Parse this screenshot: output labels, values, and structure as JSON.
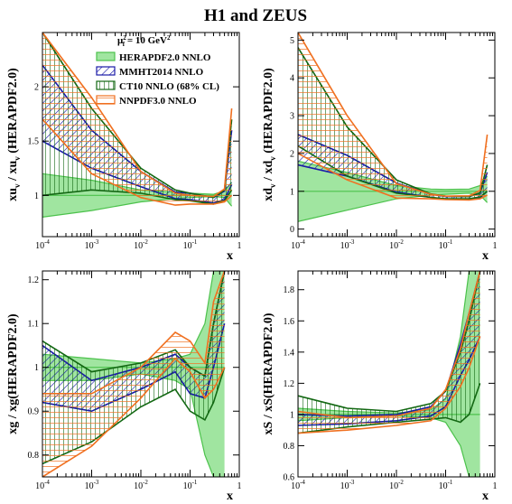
{
  "title": "H1 and ZEUS",
  "legend": {
    "scale": "μ",
    "scale_sub": "f",
    "scale_sup": "2",
    "scale_rest": " = 10 GeV",
    "scale_unit_sup": "2",
    "entries": [
      {
        "label": "HERAPDF2.0 NNLO",
        "key": "hera"
      },
      {
        "label": "MMHT2014 NNLO",
        "key": "mmht"
      },
      {
        "label": "CT10 NNLO (68% CL)",
        "key": "ct10"
      },
      {
        "label": "NNPDF3.0 NNLO",
        "key": "nnpdf"
      }
    ]
  },
  "colors": {
    "hera_fill": "#8fe08f",
    "hera_line": "#4cc24c",
    "mmht": "#1a1aa8",
    "ct10": "#136813",
    "nnpdf": "#f07020",
    "axis": "#000000"
  },
  "chart_data": [
    {
      "type": "line",
      "ylabel": "xu  / xu  (HERAPDF2.0)",
      "ylabel_main": "xu",
      "ylabel_sub": "v",
      "ylabel_mid": " / xu",
      "ylabel_sub2": "v",
      "ylabel_end": " (HERAPDF2.0)",
      "xlabel": "x",
      "xscale": "log",
      "xlim": [
        0.0001,
        1
      ],
      "ylim": [
        0.62,
        2.5
      ],
      "yticks": [
        "1",
        "1.5",
        "2"
      ],
      "yticks_values": [
        1,
        1.5,
        2
      ],
      "xticks": [
        {
          "base": "10",
          "exp": "-4",
          "v": 0.0001
        },
        {
          "base": "10",
          "exp": "-3",
          "v": 0.001
        },
        {
          "base": "10",
          "exp": "-2",
          "v": 0.01
        },
        {
          "base": "10",
          "exp": "-1",
          "v": 0.1
        },
        {
          "base": "1",
          "exp": "",
          "v": 1
        }
      ],
      "series": [
        {
          "key": "hera",
          "x": [
            0.0001,
            0.001,
            0.01,
            0.05,
            0.1,
            0.3,
            0.5,
            0.7
          ],
          "central": [
            1,
            1,
            1,
            1,
            1,
            1,
            1,
            1
          ],
          "lo": [
            0.8,
            0.86,
            0.94,
            0.97,
            0.98,
            0.99,
            0.98,
            0.9
          ],
          "hi": [
            1.2,
            1.14,
            1.05,
            1.03,
            1.02,
            1.01,
            1.04,
            1.12
          ]
        },
        {
          "key": "mmht",
          "x": [
            0.0001,
            0.001,
            0.01,
            0.05,
            0.1,
            0.3,
            0.5,
            0.7
          ],
          "central": [
            1.85,
            1.4,
            1.15,
            1.0,
            0.99,
            0.95,
            1.0,
            1.3
          ],
          "lo": [
            1.5,
            1.25,
            1.08,
            0.97,
            0.96,
            0.93,
            0.96,
            1.1
          ],
          "hi": [
            2.2,
            1.6,
            1.22,
            1.03,
            1.02,
            0.98,
            1.04,
            1.6
          ]
        },
        {
          "key": "ct10",
          "x": [
            0.0001,
            0.001,
            0.01,
            0.05,
            0.1,
            0.3,
            0.5,
            0.7
          ],
          "central": [
            1.5,
            1.3,
            1.12,
            1.0,
            0.98,
            0.95,
            1.0,
            1.3
          ],
          "lo": [
            1.0,
            1.05,
            1.02,
            0.96,
            0.95,
            0.92,
            0.95,
            1.05
          ],
          "hi": [
            2.5,
            1.8,
            1.25,
            1.05,
            1.02,
            0.98,
            1.05,
            1.7
          ]
        },
        {
          "key": "nnpdf",
          "x": [
            0.0001,
            0.001,
            0.01,
            0.05,
            0.1,
            0.3,
            0.5,
            0.7
          ],
          "central": [
            2.1,
            1.5,
            1.1,
            0.96,
            0.96,
            0.95,
            1.0,
            1.4
          ],
          "lo": [
            1.7,
            1.2,
            0.98,
            0.91,
            0.92,
            0.92,
            0.94,
            1.0
          ],
          "hi": [
            2.5,
            1.9,
            1.22,
            1.02,
            1.0,
            0.99,
            1.06,
            1.8
          ]
        }
      ]
    },
    {
      "type": "line",
      "ylabel": "xd  / xd  (HERAPDF2.0)",
      "ylabel_main": "xd",
      "ylabel_sub": "v",
      "ylabel_mid": " / xd",
      "ylabel_sub2": "v",
      "ylabel_end": " (HERAPDF2.0)",
      "xlabel": "x",
      "xscale": "log",
      "xlim": [
        0.0001,
        1
      ],
      "ylim": [
        -0.2,
        5.2
      ],
      "yticks": [
        "0",
        "1",
        "2",
        "3",
        "4",
        "5"
      ],
      "yticks_values": [
        0,
        1,
        2,
        3,
        4,
        5
      ],
      "xticks": [
        {
          "base": "10",
          "exp": "-4",
          "v": 0.0001
        },
        {
          "base": "10",
          "exp": "-3",
          "v": 0.001
        },
        {
          "base": "10",
          "exp": "-2",
          "v": 0.01
        },
        {
          "base": "10",
          "exp": "-1",
          "v": 0.1
        },
        {
          "base": "1",
          "exp": "",
          "v": 1
        }
      ],
      "series": [
        {
          "key": "hera",
          "x": [
            0.0001,
            0.001,
            0.01,
            0.05,
            0.1,
            0.3,
            0.5,
            0.7
          ],
          "central": [
            1,
            1,
            1,
            1,
            1,
            1,
            1,
            1
          ],
          "lo": [
            0.2,
            0.5,
            0.8,
            0.9,
            0.92,
            0.95,
            0.9,
            0.7
          ],
          "hi": [
            1.8,
            1.5,
            1.15,
            1.06,
            1.05,
            1.06,
            1.15,
            1.4
          ]
        },
        {
          "key": "mmht",
          "x": [
            0.0001,
            0.001,
            0.01,
            0.05,
            0.1,
            0.3,
            0.5,
            0.7
          ],
          "central": [
            2.1,
            1.7,
            1.1,
            0.88,
            0.82,
            0.82,
            0.88,
            1.2
          ],
          "lo": [
            1.7,
            1.4,
            0.98,
            0.84,
            0.79,
            0.79,
            0.83,
            1.0
          ],
          "hi": [
            2.5,
            1.95,
            1.22,
            0.92,
            0.86,
            0.86,
            0.95,
            1.5
          ]
        },
        {
          "key": "ct10",
          "x": [
            0.0001,
            0.001,
            0.01,
            0.05,
            0.1,
            0.3,
            0.5,
            0.7
          ],
          "central": [
            3.3,
            1.9,
            1.1,
            0.88,
            0.83,
            0.83,
            0.9,
            1.3
          ],
          "lo": [
            2.2,
            1.4,
            0.95,
            0.84,
            0.8,
            0.8,
            0.85,
            1.0
          ],
          "hi": [
            4.8,
            2.7,
            1.3,
            0.93,
            0.87,
            0.86,
            0.96,
            1.7
          ]
        },
        {
          "key": "nnpdf",
          "x": [
            0.0001,
            0.001,
            0.01,
            0.05,
            0.1,
            0.3,
            0.5,
            0.7
          ],
          "central": [
            3.5,
            2.0,
            1.0,
            0.85,
            0.82,
            0.82,
            0.9,
            1.5
          ],
          "lo": [
            2.0,
            1.3,
            0.82,
            0.8,
            0.78,
            0.77,
            0.8,
            0.9
          ],
          "hi": [
            5.2,
            3.0,
            1.2,
            0.92,
            0.87,
            0.88,
            1.02,
            2.5
          ]
        }
      ]
    },
    {
      "type": "line",
      "ylabel": "xg / xg(HERAPDF2.0)",
      "ylabel_main": "xg / xg(HERAPDF2.0)",
      "xlabel": "x",
      "xscale": "log",
      "xlim": [
        0.0001,
        1
      ],
      "ylim": [
        0.75,
        1.22
      ],
      "yticks": [
        "0.8",
        "0.9",
        "1",
        "1.1",
        "1.2"
      ],
      "yticks_values": [
        0.8,
        0.9,
        1.0,
        1.1,
        1.2
      ],
      "xticks": [
        {
          "base": "10",
          "exp": "-4",
          "v": 0.0001
        },
        {
          "base": "10",
          "exp": "-3",
          "v": 0.001
        },
        {
          "base": "10",
          "exp": "-2",
          "v": 0.01
        },
        {
          "base": "10",
          "exp": "-1",
          "v": 0.1
        },
        {
          "base": "1",
          "exp": "",
          "v": 1
        }
      ],
      "series": [
        {
          "key": "hera",
          "x": [
            0.0001,
            0.001,
            0.01,
            0.05,
            0.1,
            0.2,
            0.3,
            0.5
          ],
          "central": [
            1,
            1,
            1,
            1,
            1,
            1,
            1,
            1
          ],
          "lo": [
            0.97,
            0.97,
            0.985,
            0.97,
            0.95,
            0.8,
            0.75,
            0.75
          ],
          "hi": [
            1.03,
            1.02,
            1.01,
            1.02,
            1.03,
            1.1,
            1.22,
            1.22
          ]
        },
        {
          "key": "mmht",
          "x": [
            0.0001,
            0.001,
            0.01,
            0.05,
            0.1,
            0.2,
            0.3,
            0.5
          ],
          "central": [
            0.98,
            0.93,
            0.97,
            1.01,
            0.97,
            0.95,
            1.05,
            1.2
          ],
          "lo": [
            0.92,
            0.9,
            0.95,
            0.99,
            0.94,
            0.93,
            1.0,
            1.1
          ],
          "hi": [
            1.05,
            0.97,
            1.0,
            1.03,
            1.0,
            0.98,
            1.1,
            1.22
          ]
        },
        {
          "key": "ct10",
          "x": [
            0.0001,
            0.001,
            0.01,
            0.05,
            0.1,
            0.2,
            0.3,
            0.5
          ],
          "central": [
            0.92,
            0.91,
            0.96,
            0.99,
            0.95,
            0.92,
            1.0,
            1.2
          ],
          "lo": [
            0.78,
            0.83,
            0.91,
            0.95,
            0.9,
            0.88,
            0.92,
            1.0
          ],
          "hi": [
            1.06,
            0.99,
            1.01,
            1.04,
            1.0,
            0.98,
            1.1,
            1.22
          ]
        },
        {
          "key": "nnpdf",
          "x": [
            0.0001,
            0.001,
            0.01,
            0.05,
            0.1,
            0.2,
            0.3,
            0.5
          ],
          "central": [
            0.84,
            0.88,
            0.97,
            1.05,
            1.03,
            0.97,
            1.05,
            1.2
          ],
          "lo": [
            0.75,
            0.82,
            0.93,
            1.02,
            0.99,
            0.93,
            0.95,
            1.0
          ],
          "hi": [
            0.94,
            0.94,
            1.0,
            1.08,
            1.06,
            1.01,
            1.15,
            1.22
          ]
        }
      ]
    },
    {
      "type": "line",
      "ylabel": "xS / xS(HERAPDF2.0)",
      "ylabel_main": "xS / xS(HERAPDF2.0)",
      "xlabel": "x",
      "xscale": "log",
      "xlim": [
        0.0001,
        1
      ],
      "ylim": [
        0.6,
        1.92
      ],
      "yticks": [
        "0.6",
        "0.8",
        "1",
        "1.2",
        "1.4",
        "1.6",
        "1.8"
      ],
      "yticks_values": [
        0.6,
        0.8,
        1.0,
        1.2,
        1.4,
        1.6,
        1.8
      ],
      "xticks": [
        {
          "base": "10",
          "exp": "-4",
          "v": 0.0001
        },
        {
          "base": "10",
          "exp": "-3",
          "v": 0.001
        },
        {
          "base": "10",
          "exp": "-2",
          "v": 0.01
        },
        {
          "base": "10",
          "exp": "-1",
          "v": 0.1
        },
        {
          "base": "1",
          "exp": "",
          "v": 1
        }
      ],
      "series": [
        {
          "key": "hera",
          "x": [
            0.0001,
            0.001,
            0.01,
            0.05,
            0.1,
            0.2,
            0.3,
            0.5
          ],
          "central": [
            1,
            1,
            1,
            1,
            1,
            1,
            1,
            1
          ],
          "lo": [
            0.96,
            0.98,
            0.99,
            0.98,
            0.95,
            0.8,
            0.6,
            0.6
          ],
          "hi": [
            1.04,
            1.02,
            1.01,
            1.03,
            1.1,
            1.5,
            1.92,
            1.92
          ]
        },
        {
          "key": "mmht",
          "x": [
            0.0001,
            0.001,
            0.01,
            0.05,
            0.1,
            0.2,
            0.3,
            0.5
          ],
          "central": [
            0.97,
            0.96,
            0.98,
            1.02,
            1.1,
            1.35,
            1.5,
            1.8
          ],
          "lo": [
            0.93,
            0.94,
            0.96,
            0.99,
            1.05,
            1.25,
            1.35,
            1.5
          ],
          "hi": [
            1.0,
            0.99,
            1.0,
            1.05,
            1.15,
            1.45,
            1.65,
            1.92
          ]
        },
        {
          "key": "ct10",
          "x": [
            0.0001,
            0.001,
            0.01,
            0.05,
            0.1,
            0.2,
            0.3,
            0.5
          ],
          "central": [
            1.0,
            0.98,
            0.99,
            1.02,
            1.05,
            1.15,
            1.3,
            1.6
          ],
          "lo": [
            0.88,
            0.92,
            0.95,
            0.97,
            0.98,
            0.95,
            1.0,
            1.2
          ],
          "hi": [
            1.12,
            1.04,
            1.02,
            1.07,
            1.15,
            1.4,
            1.6,
            1.92
          ]
        },
        {
          "key": "nnpdf",
          "x": [
            0.0001,
            0.001,
            0.01,
            0.05,
            0.1,
            0.2,
            0.3,
            0.5
          ],
          "central": [
            0.95,
            0.94,
            0.96,
            1.0,
            1.1,
            1.3,
            1.5,
            1.8
          ],
          "lo": [
            0.88,
            0.9,
            0.93,
            0.96,
            1.04,
            1.18,
            1.3,
            1.5
          ],
          "hi": [
            1.02,
            0.98,
            0.99,
            1.04,
            1.16,
            1.42,
            1.65,
            1.92
          ]
        }
      ]
    }
  ]
}
